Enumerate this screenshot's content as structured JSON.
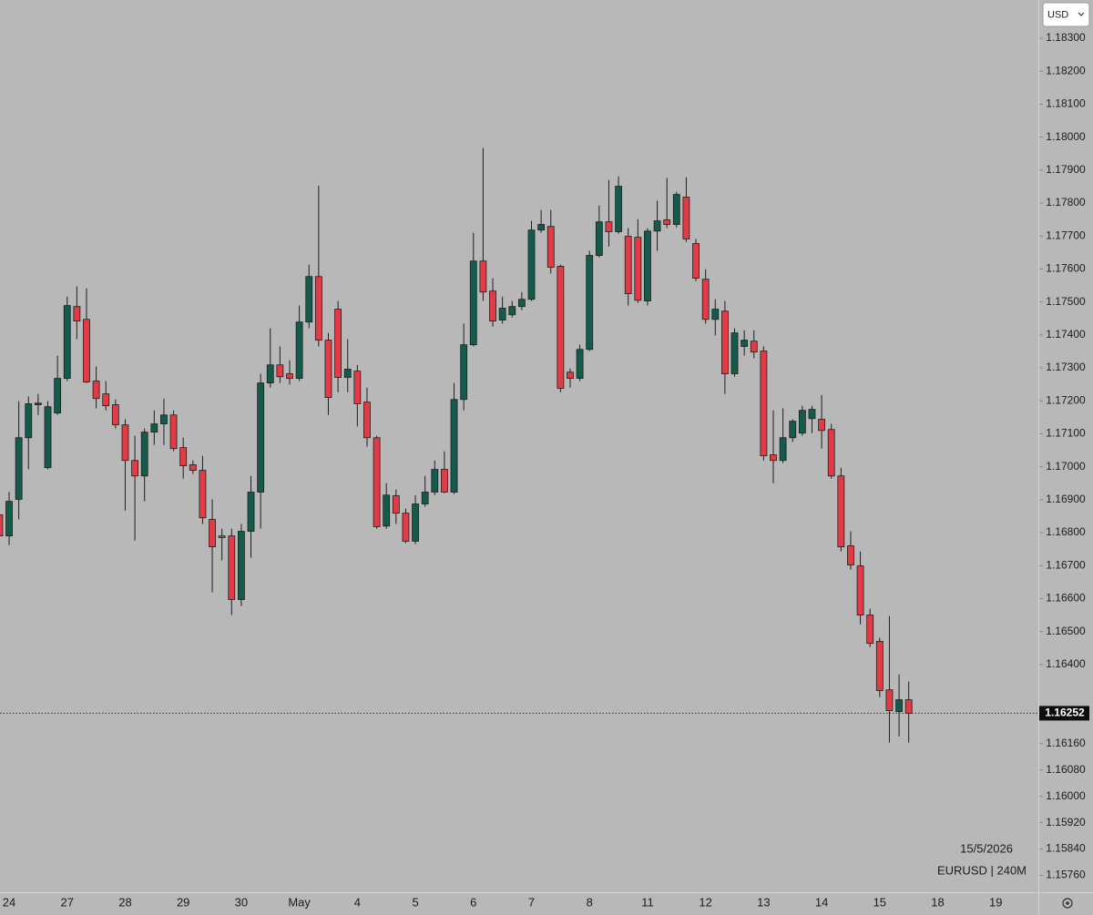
{
  "chart_data": {
    "type": "candlestick",
    "symbol": "EURUSD | 240M",
    "date_label": "15/5/2026",
    "currency": "USD",
    "categories": [
      null,
      "24",
      null,
      null,
      null,
      null,
      null,
      "27",
      null,
      null,
      null,
      null,
      null,
      "28",
      null,
      null,
      null,
      null,
      null,
      "29",
      null,
      null,
      null,
      null,
      null,
      "30",
      null,
      null,
      null,
      null,
      null,
      "May",
      null,
      null,
      null,
      null,
      null,
      "4",
      null,
      null,
      null,
      null,
      null,
      "5",
      null,
      null,
      null,
      null,
      null,
      "6",
      null,
      null,
      null,
      null,
      null,
      "7",
      null,
      null,
      null,
      null,
      null,
      "8",
      null,
      null,
      null,
      null,
      null,
      "11",
      null,
      null,
      null,
      null,
      null,
      "12",
      null,
      null,
      null,
      null,
      null,
      "13",
      null,
      null,
      null,
      null,
      null,
      "14",
      null,
      null,
      null,
      null,
      null,
      "15",
      null,
      null,
      null,
      null,
      null,
      "18",
      null,
      null,
      null,
      null,
      null,
      "19"
    ],
    "open": [
      1.16854,
      1.1679,
      1.16901,
      1.17088,
      1.17188,
      1.16997,
      1.17163,
      1.17268,
      1.17486,
      1.17447,
      1.1726,
      1.17221,
      1.17188,
      1.17127,
      1.17019,
      1.16972,
      1.17105,
      1.1713,
      1.17157,
      1.17058,
      1.17006,
      1.16989,
      1.1684,
      1.1679,
      1.1679,
      1.16597,
      1.16804,
      1.16923,
      1.17254,
      1.17309,
      1.17282,
      1.17268,
      1.17439,
      1.17577,
      1.17384,
      1.17478,
      1.17271,
      1.1729,
      1.17196,
      1.17088,
      1.1682,
      1.16912,
      1.16859,
      1.16774,
      1.16887,
      1.16923,
      1.16992,
      1.16923,
      1.17204,
      1.1737,
      1.17624,
      1.17533,
      1.17445,
      1.17461,
      1.17486,
      1.17508,
      1.17718,
      1.17729,
      1.17608,
      1.17287,
      1.17268,
      1.17356,
      1.17641,
      1.17743,
      1.17713,
      1.17699,
      1.17696,
      1.17503,
      1.17715,
      1.17749,
      1.17735,
      1.17818,
      1.17677,
      1.17569,
      1.17447,
      1.17472,
      1.17282,
      1.17365,
      1.17381,
      1.17351,
      1.17036,
      1.17019,
      1.17088,
      1.17102,
      1.17146,
      1.17144,
      1.17113,
      1.16972,
      1.1676,
      1.16699,
      1.1655,
      1.1647,
      1.16323,
      1.16257,
      1.16293,
      null,
      null,
      null,
      null,
      null,
      null,
      null,
      null,
      null
    ],
    "high": [
      1.16867,
      1.16923,
      1.17199,
      1.17213,
      1.17221,
      1.17199,
      1.17337,
      1.17516,
      1.17547,
      1.17541,
      1.17304,
      1.1726,
      1.17204,
      1.17144,
      1.17094,
      1.17116,
      1.17171,
      1.17207,
      1.17171,
      1.17088,
      1.17019,
      1.17033,
      1.16901,
      1.16812,
      1.16812,
      1.16826,
      1.16972,
      1.17282,
      1.1742,
      1.17365,
      1.17323,
      1.17489,
      1.17613,
      1.17853,
      1.17406,
      1.17503,
      1.17387,
      1.17309,
      1.1724,
      1.17094,
      1.1695,
      1.16931,
      1.16873,
      1.16914,
      1.16972,
      1.17019,
      1.17047,
      1.17254,
      1.17434,
      1.1771,
      1.17967,
      1.17572,
      1.17516,
      1.17503,
      1.1753,
      1.17746,
      1.17779,
      1.17779,
      1.17613,
      1.17298,
      1.1737,
      1.17655,
      1.17793,
      1.1787,
      1.17881,
      1.17724,
      1.17751,
      1.17724,
      1.17807,
      1.17876,
      1.17834,
      1.17878,
      1.17691,
      1.17599,
      1.17508,
      1.17503,
      1.1742,
      1.17414,
      1.17414,
      1.17365,
      1.17171,
      1.17177,
      1.17144,
      1.17185,
      1.17185,
      1.17218,
      1.1713,
      1.16997,
      1.16804,
      1.16743,
      1.16569,
      1.16481,
      1.16547,
      1.1637,
      1.16348,
      null,
      null,
      null,
      null,
      null,
      null,
      null,
      null,
      null
    ],
    "low": [
      1.16729,
      1.16762,
      1.1684,
      1.16992,
      1.17157,
      1.16992,
      1.17157,
      1.1726,
      1.17387,
      1.17254,
      1.17177,
      1.17171,
      1.17116,
      1.16867,
      1.16776,
      1.16895,
      1.17066,
      1.17066,
      1.17047,
      1.16964,
      1.16978,
      1.16826,
      1.16619,
      1.16716,
      1.1655,
      1.16577,
      1.16724,
      1.16812,
      1.1724,
      1.17254,
      1.17249,
      1.1726,
      1.1742,
      1.17365,
      1.17157,
      1.17226,
      1.17226,
      1.17122,
      1.17061,
      1.16812,
      1.16812,
      1.16826,
      1.16768,
      1.16765,
      1.16878,
      1.16914,
      1.1692,
      1.16917,
      1.17171,
      1.17365,
      1.17503,
      1.17425,
      1.17434,
      1.17453,
      1.17475,
      1.17503,
      1.1771,
      1.17586,
      1.17226,
      1.1724,
      1.1726,
      1.17351,
      1.17635,
      1.17668,
      1.17707,
      1.17489,
      1.17497,
      1.17489,
      1.17655,
      1.17724,
      1.17726,
      1.17682,
      1.17563,
      1.17434,
      1.17398,
      1.17221,
      1.17273,
      1.17337,
      1.17329,
      1.17019,
      1.1695,
      1.17011,
      1.17075,
      1.17094,
      1.17102,
      1.17055,
      1.16964,
      1.16743,
      1.16688,
      1.16522,
      1.16453,
      1.16301,
      1.16163,
      1.16182,
      1.16163,
      null,
      null,
      null,
      null,
      null,
      null,
      null,
      null,
      null
    ],
    "close": [
      1.1679,
      1.16895,
      1.17088,
      1.17191,
      1.17193,
      1.17182,
      1.17268,
      1.17489,
      1.17442,
      1.17257,
      1.17207,
      1.17185,
      1.17127,
      1.17019,
      1.16972,
      1.17105,
      1.1713,
      1.17157,
      1.17055,
      1.17003,
      1.16989,
      1.16845,
      1.16757,
      1.16785,
      1.16597,
      1.16804,
      1.16923,
      1.17254,
      1.17309,
      1.17273,
      1.17268,
      1.17439,
      1.17577,
      1.17384,
      1.1721,
      1.17271,
      1.17296,
      1.17191,
      1.17088,
      1.16818,
      1.16914,
      1.16859,
      1.16774,
      1.16887,
      1.16923,
      1.16992,
      1.16923,
      1.17204,
      1.1737,
      1.17624,
      1.1753,
      1.17442,
      1.17481,
      1.17486,
      1.17508,
      1.17718,
      1.17735,
      1.17605,
      1.17238,
      1.17268,
      1.17356,
      1.17641,
      1.17743,
      1.17713,
      1.17851,
      1.17525,
      1.17505,
      1.17715,
      1.17746,
      1.17735,
      1.17826,
      1.17691,
      1.17572,
      1.17447,
      1.17478,
      1.17282,
      1.17406,
      1.17384,
      1.17348,
      1.17033,
      1.17019,
      1.17088,
      1.17138,
      1.17171,
      1.17174,
      1.1711,
      1.16972,
      1.16757,
      1.16702,
      1.1655,
      1.16464,
      1.16321,
      1.1626,
      1.16293,
      1.16252,
      null,
      null,
      null,
      null,
      null,
      null,
      null,
      null,
      null
    ],
    "up_color": "#145b4b",
    "down_color": "#e23b45",
    "last_price": 1.16252,
    "ylim": [
      1.15709,
      1.18416
    ],
    "yticks": [
      {
        "value": 1.183,
        "label": "1.18300"
      },
      {
        "value": 1.182,
        "label": "1.18200"
      },
      {
        "value": 1.181,
        "label": "1.18100"
      },
      {
        "value": 1.18,
        "label": "1.18000"
      },
      {
        "value": 1.179,
        "label": "1.17900"
      },
      {
        "value": 1.178,
        "label": "1.17800"
      },
      {
        "value": 1.177,
        "label": "1.17700"
      },
      {
        "value": 1.176,
        "label": "1.17600"
      },
      {
        "value": 1.175,
        "label": "1.17500"
      },
      {
        "value": 1.174,
        "label": "1.17400"
      },
      {
        "value": 1.173,
        "label": "1.17300"
      },
      {
        "value": 1.172,
        "label": "1.17200"
      },
      {
        "value": 1.171,
        "label": "1.17100"
      },
      {
        "value": 1.17,
        "label": "1.17000"
      },
      {
        "value": 1.169,
        "label": "1.16900"
      },
      {
        "value": 1.168,
        "label": "1.16800"
      },
      {
        "value": 1.167,
        "label": "1.16700"
      },
      {
        "value": 1.166,
        "label": "1.16600"
      },
      {
        "value": 1.165,
        "label": "1.16500"
      },
      {
        "value": 1.164,
        "label": "1.16400"
      },
      {
        "value": 1.1616,
        "label": "1.16160"
      },
      {
        "value": 1.1608,
        "label": "1.16080"
      },
      {
        "value": 1.16,
        "label": "1.16000"
      },
      {
        "value": 1.1592,
        "label": "1.15920"
      },
      {
        "value": 1.1584,
        "label": "1.15840"
      },
      {
        "value": 1.1576,
        "label": "1.15760"
      }
    ]
  }
}
